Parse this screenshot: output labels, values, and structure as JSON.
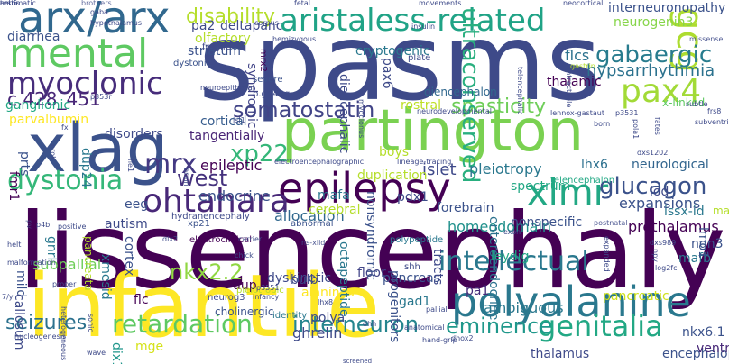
{
  "words": [
    {
      "text": "spasms",
      "color": "#3e4a89"
    },
    {
      "text": "lissencephaly",
      "color": "#440154"
    },
    {
      "text": "infantile",
      "color": "#fde725"
    },
    {
      "text": "partington",
      "color": "#7ad151"
    },
    {
      "text": "xlag",
      "color": "#3b528b"
    },
    {
      "text": "arx/arx",
      "color": "#31688e"
    },
    {
      "text": "polyalanine",
      "color": "#2a788e"
    },
    {
      "text": "epilepsy",
      "color": "#440154"
    },
    {
      "text": "ohtahara",
      "color": "#482878"
    },
    {
      "text": "mental",
      "color": "#5ec962"
    },
    {
      "text": "myoclonic",
      "color": "#472d7b"
    },
    {
      "text": "gcg",
      "color": "#addc30"
    },
    {
      "text": "pax4",
      "color": "#a2da37"
    },
    {
      "text": "aristaless-related",
      "color": "#20a386"
    },
    {
      "text": "xlmr",
      "color": "#22a884"
    },
    {
      "text": "dystonia",
      "color": "#35b779"
    },
    {
      "text": "genitalia",
      "color": "#22a884"
    },
    {
      "text": "intellectual",
      "color": "#2a788e"
    },
    {
      "text": "glucagon",
      "color": "#3b528b"
    },
    {
      "text": "retardation",
      "color": "#5ec962"
    },
    {
      "text": "mrx",
      "color": "#443983"
    },
    {
      "text": "xp22",
      "color": "#35b779"
    },
    {
      "text": "west",
      "color": "#46337e"
    },
    {
      "text": "somatostatin",
      "color": "#414487"
    },
    {
      "text": "c.428_451",
      "color": "#482677"
    },
    {
      "text": "gabaergic",
      "color": "#287c8e"
    },
    {
      "text": "nkx2.2",
      "color": "#90d743"
    },
    {
      "text": "spasticity",
      "color": "#6ece58"
    },
    {
      "text": "interneuron",
      "color": "#25858e"
    },
    {
      "text": "eminence",
      "color": "#1f988b"
    },
    {
      "text": "seizures",
      "color": "#2c718e"
    },
    {
      "text": "disability",
      "color": "#b5de2b"
    },
    {
      "text": "ultraconserved",
      "color": "#29af7f"
    },
    {
      "text": "hypsarrhythmia",
      "color": "#2c728e"
    },
    {
      "text": "neurogenin3",
      "color": "#86d549"
    },
    {
      "text": "interneuronopathy",
      "color": "#3b528b"
    },
    {
      "text": "flcs",
      "color": "#2c728e"
    },
    {
      "text": "thalamic",
      "color": "#440154"
    },
    {
      "text": "islet",
      "color": "#3e4989"
    },
    {
      "text": "pleiotropy",
      "color": "#2a788e"
    },
    {
      "text": "endocrine",
      "color": "#3b528b"
    },
    {
      "text": "epileptic",
      "color": "#440154"
    },
    {
      "text": "tangentially",
      "color": "#482475"
    },
    {
      "text": "cortical",
      "color": "#365c8d"
    },
    {
      "text": "parvalbumin",
      "color": "#fde725"
    },
    {
      "text": "ganglionic",
      "color": "#22a884"
    },
    {
      "text": "x-linked",
      "color": "#5ec962"
    },
    {
      "text": "rostral",
      "color": "#bddf26"
    },
    {
      "text": "lhx6",
      "color": "#2d708e"
    },
    {
      "text": "neurological",
      "color": "#32658e"
    },
    {
      "text": "expansions",
      "color": "#3b528b"
    },
    {
      "text": "prethalamus",
      "color": "#440154"
    },
    {
      "text": "homeodomain",
      "color": "#21918c"
    },
    {
      "text": "forebrain",
      "color": "#3b528b"
    },
    {
      "text": "allocation",
      "color": "#31688e"
    },
    {
      "text": "dyskinetic",
      "color": "#3e4989"
    },
    {
      "text": "subpallial",
      "color": "#6ece58"
    },
    {
      "text": "alanines",
      "color": "#fde725"
    },
    {
      "text": "ghrelin",
      "color": "#3e4a89"
    },
    {
      "text": "polya",
      "color": "#3e4989"
    },
    {
      "text": "gad1",
      "color": "#2a788e"
    },
    {
      "text": "pa1",
      "color": "#472c7a"
    },
    {
      "text": "ambiguous",
      "color": "#2a788e"
    },
    {
      "text": "pancreatic",
      "color": "#d0e11c"
    },
    {
      "text": "thalamus",
      "color": "#3e4989"
    },
    {
      "text": "encephalopathies",
      "color": "#3b528b"
    },
    {
      "text": "nkx6.1",
      "color": "#3b528b"
    },
    {
      "text": "ventral",
      "color": "#482878"
    },
    {
      "text": "flc",
      "color": "#440154"
    },
    {
      "text": "mge",
      "color": "#d5e21a"
    },
    {
      "text": "dix1",
      "color": "#1f968b"
    },
    {
      "text": "pancreas",
      "color": "#3b528b"
    },
    {
      "text": "floor",
      "color": "#414487"
    },
    {
      "text": "tracts",
      "color": "#3e4989"
    },
    {
      "text": "progenitors",
      "color": "#3b528b"
    },
    {
      "text": "enteroendocrine",
      "color": "#2c728e"
    },
    {
      "text": "nonspecific",
      "color": "#3b528b"
    },
    {
      "text": "issx-id",
      "color": "#2a788e"
    },
    {
      "text": "males",
      "color": "#b5de2b"
    },
    {
      "text": "lod",
      "color": "#3e4a89"
    },
    {
      "text": "spectrum",
      "color": "#22a884"
    },
    {
      "text": "pdx1",
      "color": "#3e4a89"
    },
    {
      "text": "mafa",
      "color": "#2a788e"
    },
    {
      "text": "duplication",
      "color": "#b5de2b"
    },
    {
      "text": "boys",
      "color": "#b5de2b"
    },
    {
      "text": "eeg",
      "color": "#3b528b"
    },
    {
      "text": "autism",
      "color": "#3e4a89"
    },
    {
      "text": "fmr1",
      "color": "#440154"
    },
    {
      "text": "prts",
      "color": "#3b528b"
    },
    {
      "text": "dup24",
      "color": "#2a788e"
    },
    {
      "text": "disorders",
      "color": "#3e4a89"
    },
    {
      "text": "xmesid",
      "color": "#2a788e"
    },
    {
      "text": "cortex",
      "color": "#3b528b"
    },
    {
      "text": "pancreata",
      "color": "#b5de2b"
    },
    {
      "text": "gnrl",
      "color": "#2a788e"
    },
    {
      "text": "diencephalon",
      "color": "#31688e"
    },
    {
      "text": "cerebral",
      "color": "#b5de2b"
    },
    {
      "text": "nonsyndromic",
      "color": "#3b528b"
    },
    {
      "text": "octapeptide",
      "color": "#2a788e"
    },
    {
      "text": "mafb",
      "color": "#2a788e"
    },
    {
      "text": "ngn3",
      "color": "#3b528b"
    },
    {
      "text": "lmo1",
      "color": "#3b528b"
    },
    {
      "text": "leydig",
      "color": "#22a884"
    },
    {
      "text": "bulb",
      "color": "#3e4a89"
    },
    {
      "text": "dup",
      "color": "#440154"
    },
    {
      "text": "mild",
      "color": "#3b528b"
    },
    {
      "text": "callosum",
      "color": "#3e4a89"
    },
    {
      "text": "pa2",
      "color": "#3e4a89"
    },
    {
      "text": "olfactory",
      "color": "#b5de2b"
    },
    {
      "text": "striatum",
      "color": "#3b528b"
    },
    {
      "text": "deltapanc",
      "color": "#3e4989"
    },
    {
      "text": "diarrhea",
      "color": "#3b528b"
    },
    {
      "text": "syndromic",
      "color": "#414487"
    },
    {
      "text": "diencephalic",
      "color": "#3e4a89"
    },
    {
      "text": "cryptogenic",
      "color": "#2a788e"
    },
    {
      "text": "pax6",
      "color": "#3e4a89"
    },
    {
      "text": "telencephalon",
      "color": "#22a884"
    },
    {
      "text": "pleiotropic",
      "color": "#b5de2b"
    },
    {
      "text": "cholinergic",
      "color": "#3b528b"
    },
    {
      "text": "neurog3",
      "color": "#3e4a89"
    },
    {
      "text": "identity",
      "color": "#2a788e"
    },
    {
      "text": "xp21",
      "color": "#3b528b"
    },
    {
      "text": "hydranencephaly",
      "color": "#3e4a89"
    },
    {
      "text": "electroclinical",
      "color": "#440154"
    },
    {
      "text": "abnormal",
      "color": "#3b528b"
    },
    {
      "text": "polypeptide",
      "color": "#2a788e"
    },
    {
      "text": "shh",
      "color": "#3e4a89"
    },
    {
      "text": "plate",
      "color": "#3e4a89"
    },
    {
      "text": "p.g449g",
      "color": "#3e4a89"
    },
    {
      "text": "severe",
      "color": "#3b528b"
    },
    {
      "text": "fragile",
      "color": "#3e4a89"
    },
    {
      "text": "dystonic",
      "color": "#3b528b"
    },
    {
      "text": "mrx2",
      "color": "#440154"
    },
    {
      "text": "hypothalamus",
      "color": "#3e4a89"
    },
    {
      "text": "gaba",
      "color": "#3e4a89"
    },
    {
      "text": "brothers",
      "color": "#3e4a89"
    },
    {
      "text": "fetal",
      "color": "#3e4a89"
    },
    {
      "text": "movements",
      "color": "#3e4a89"
    },
    {
      "text": "neocortical",
      "color": "#3e4a89"
    },
    {
      "text": "corpus",
      "color": "#3e4a89"
    },
    {
      "text": "insulin",
      "color": "#3e4a89"
    },
    {
      "text": "missense",
      "color": "#3e4a89"
    },
    {
      "text": "gastrin",
      "color": "#b5de2b"
    },
    {
      "text": "born",
      "color": "#3e4a89"
    },
    {
      "text": "intractable",
      "color": "#3e4a89"
    },
    {
      "text": "myoclonus",
      "color": "#3e4a89"
    },
    {
      "text": "telencephalic",
      "color": "#3e4a89"
    },
    {
      "text": "neuroepithelial",
      "color": "#3e4a89"
    },
    {
      "text": "p353r",
      "color": "#3e4a89"
    },
    {
      "text": "neurodevelopmental",
      "color": "#3e4a89"
    },
    {
      "text": "lennox-gastaut",
      "color": "#3e4a89"
    },
    {
      "text": "p3531",
      "color": "#3e4a89"
    },
    {
      "text": "subtle",
      "color": "#3e4a89"
    },
    {
      "text": "pola1",
      "color": "#3e4a89"
    },
    {
      "text": "subventricular",
      "color": "#3e4a89"
    },
    {
      "text": "fates",
      "color": "#3e4a89"
    },
    {
      "text": "dxs1202",
      "color": "#3e4a89"
    },
    {
      "text": "postnatal",
      "color": "#3e4a89"
    },
    {
      "text": "expanded",
      "color": "#3e4a89"
    },
    {
      "text": "dxs989",
      "color": "#3e4a89"
    },
    {
      "text": "npy",
      "color": "#3e4a89"
    },
    {
      "text": "log2fc",
      "color": "#3e4a89"
    },
    {
      "text": "exon",
      "color": "#3e4a89"
    },
    {
      "text": "ns-xlid",
      "color": "#3e4a89"
    },
    {
      "text": "carrier",
      "color": "#3e4a89"
    },
    {
      "text": "chick",
      "color": "#3e4a89"
    },
    {
      "text": "p3551",
      "color": "#3e4a89"
    },
    {
      "text": "infancy",
      "color": "#3e4a89"
    },
    {
      "text": "lhx8",
      "color": "#3e4a89"
    },
    {
      "text": "pallial",
      "color": "#3e4a89"
    },
    {
      "text": "dhh",
      "color": "#3e4a89"
    },
    {
      "text": "anatomical",
      "color": "#3e4a89"
    },
    {
      "text": "dhox2",
      "color": "#3e4a89"
    },
    {
      "text": "7/y",
      "color": "#3e4a89"
    },
    {
      "text": "heterogeneous",
      "color": "#3e4a89"
    },
    {
      "text": "nucleogenesis",
      "color": "#3e4a89"
    },
    {
      "text": "sonic",
      "color": "#3e4a89"
    },
    {
      "text": "wave",
      "color": "#3e4a89"
    },
    {
      "text": "screened",
      "color": "#3e4a89"
    },
    {
      "text": "hand-grip",
      "color": "#3e4a89"
    },
    {
      "text": "malformation",
      "color": "#3e4a89"
    },
    {
      "text": "proper",
      "color": "#3e4a89"
    },
    {
      "text": "helt",
      "color": "#3e4a89"
    },
    {
      "text": "positive",
      "color": "#3e4a89"
    },
    {
      "text": "dlx2",
      "color": "#3e4a89"
    },
    {
      "text": "fle1",
      "color": "#3e4a89"
    },
    {
      "text": "electroencephalographic",
      "color": "#3e4a89"
    },
    {
      "text": "lineage-tracing",
      "color": "#3e4a89"
    },
    {
      "text": "brain",
      "color": "#3e4a89"
    },
    {
      "text": "isl1",
      "color": "#3e4a89"
    },
    {
      "text": "fx",
      "color": "#3e4a89"
    },
    {
      "text": "frs8",
      "color": "#3e4a89"
    },
    {
      "text": "p4b",
      "color": "#3e4a89"
    },
    {
      "text": "pv",
      "color": "#3e4a89"
    },
    {
      "text": "prok",
      "color": "#3e4a89"
    },
    {
      "text": "hemizygous",
      "color": "#3e4a89"
    },
    {
      "text": "chromatic",
      "color": "#3e4a89"
    },
    {
      "text": "acl.5",
      "color": "#3e4a89"
    },
    {
      "text": "testis",
      "color": "#3e4a89"
    }
  ]
}
